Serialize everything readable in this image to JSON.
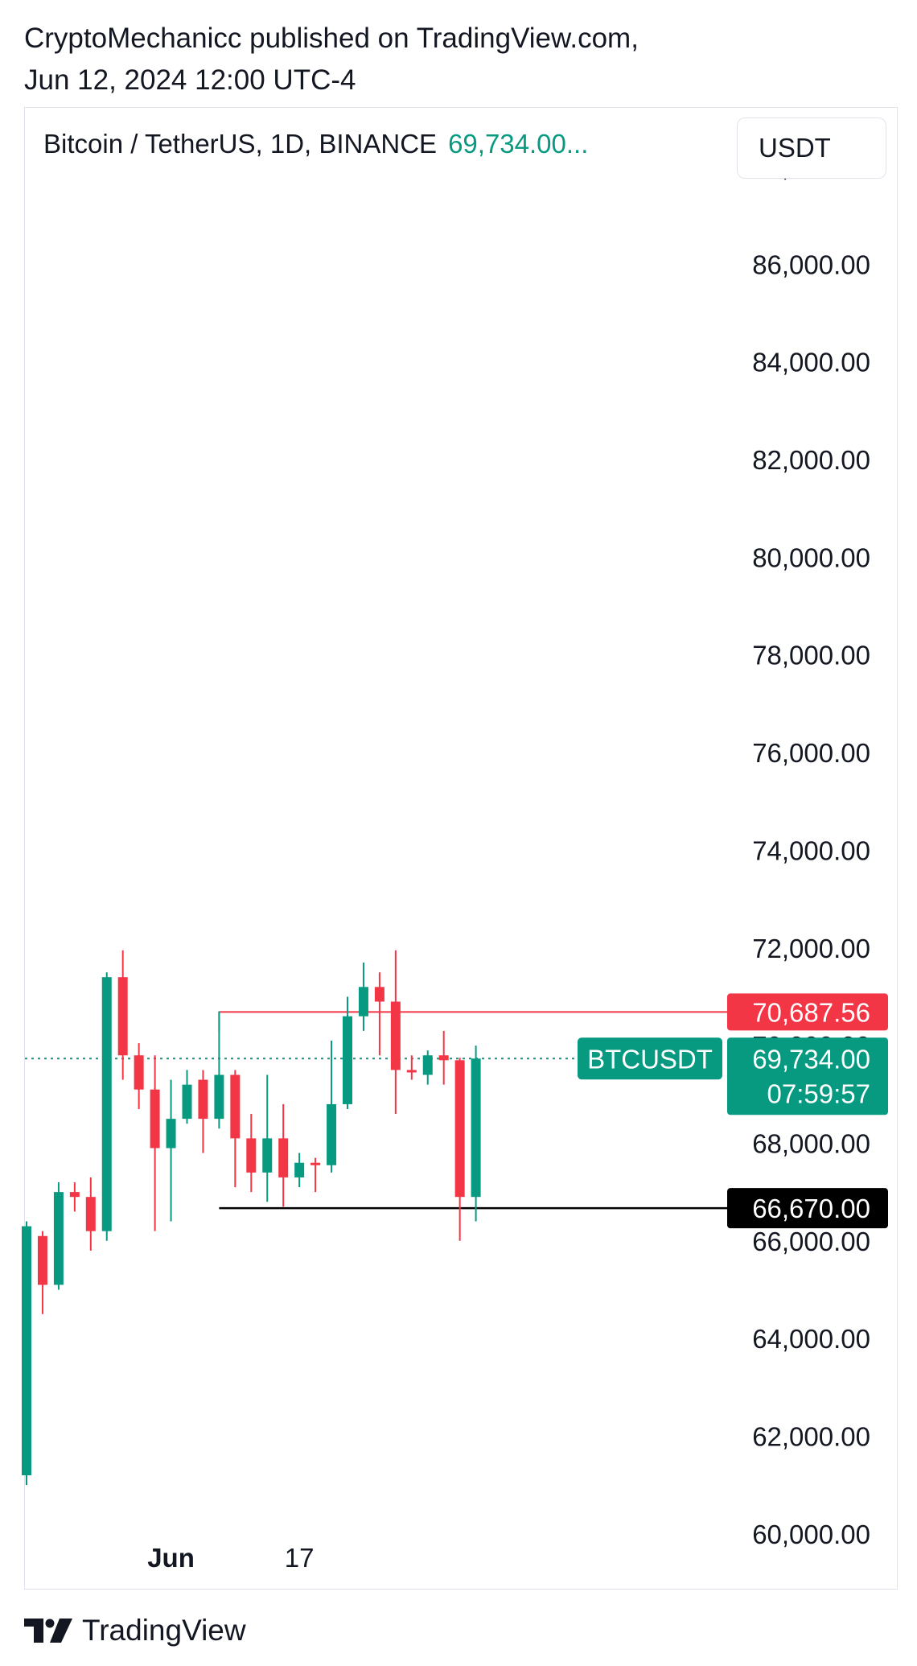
{
  "publisher_line1": "CryptoMechanicc published on TradingView.com,",
  "publisher_line2": "Jun 12, 2024 12:00 UTC-4",
  "symbol_title": "Bitcoin / TetherUS, 1D, BINANCE",
  "title_price": "69,734.00...",
  "currency_button": "USDT",
  "brand": "TradingView",
  "colors": {
    "up": "#089981",
    "down": "#f23645",
    "text": "#131722"
  },
  "chart_data": {
    "type": "candlestick",
    "y_axis": {
      "ticks": [
        60000,
        62000,
        64000,
        66000,
        68000,
        70000,
        72000,
        74000,
        76000,
        78000,
        80000,
        82000,
        84000,
        86000,
        88000
      ],
      "tick_labels": [
        "60,000.00",
        "62,000.00",
        "64,000.00",
        "66,000.00",
        "68,000.00",
        "70,000.00",
        "72,000.00",
        "74,000.00",
        "76,000.00",
        "78,000.00",
        "80,000.00",
        "82,000.00",
        "84,000.00",
        "86,000.00",
        "88,000.00"
      ],
      "visible_range": [
        58860,
        89220
      ]
    },
    "x_axis": {
      "tick_labels": [
        {
          "label": "Jun",
          "index": 9,
          "bold": true
        },
        {
          "label": "17",
          "index": 17,
          "bold": false
        }
      ]
    },
    "candles": [
      {
        "o": 61200,
        "h": 66400,
        "l": 61000,
        "c": 66300
      },
      {
        "o": 66100,
        "h": 66200,
        "l": 64500,
        "c": 65100
      },
      {
        "o": 65100,
        "h": 67200,
        "l": 65000,
        "c": 67000
      },
      {
        "o": 67000,
        "h": 67200,
        "l": 66600,
        "c": 66900
      },
      {
        "o": 66900,
        "h": 67300,
        "l": 65800,
        "c": 66200
      },
      {
        "o": 66200,
        "h": 71500,
        "l": 66000,
        "c": 71400
      },
      {
        "o": 71400,
        "h": 71950,
        "l": 69300,
        "c": 69800
      },
      {
        "o": 69800,
        "h": 70050,
        "l": 68700,
        "c": 69100
      },
      {
        "o": 69100,
        "h": 69800,
        "l": 66200,
        "c": 67900
      },
      {
        "o": 67900,
        "h": 69300,
        "l": 66400,
        "c": 68500
      },
      {
        "o": 68500,
        "h": 69500,
        "l": 68400,
        "c": 69200
      },
      {
        "o": 69300,
        "h": 69500,
        "l": 67800,
        "c": 68500
      },
      {
        "o": 68500,
        "h": 70700,
        "l": 68300,
        "c": 69400
      },
      {
        "o": 69400,
        "h": 69500,
        "l": 67100,
        "c": 68100
      },
      {
        "o": 68100,
        "h": 68600,
        "l": 67000,
        "c": 67400
      },
      {
        "o": 67400,
        "h": 69400,
        "l": 66800,
        "c": 68100
      },
      {
        "o": 68100,
        "h": 68800,
        "l": 66700,
        "c": 67300
      },
      {
        "o": 67300,
        "h": 67800,
        "l": 67100,
        "c": 67600
      },
      {
        "o": 67600,
        "h": 67700,
        "l": 67000,
        "c": 67550
      },
      {
        "o": 67550,
        "h": 70100,
        "l": 67400,
        "c": 68800
      },
      {
        "o": 68800,
        "h": 71000,
        "l": 68700,
        "c": 70600
      },
      {
        "o": 70600,
        "h": 71700,
        "l": 70300,
        "c": 71200
      },
      {
        "o": 71200,
        "h": 71500,
        "l": 69800,
        "c": 70900
      },
      {
        "o": 70900,
        "h": 71950,
        "l": 68600,
        "c": 69500
      },
      {
        "o": 69500,
        "h": 69800,
        "l": 69300,
        "c": 69450
      },
      {
        "o": 69400,
        "h": 69900,
        "l": 69200,
        "c": 69800
      },
      {
        "o": 69800,
        "h": 70300,
        "l": 69200,
        "c": 69700
      },
      {
        "o": 69700,
        "h": 69750,
        "l": 66000,
        "c": 66900
      },
      {
        "o": 66900,
        "h": 70000,
        "l": 66400,
        "c": 69734
      }
    ],
    "last_price_label": "BTCUSDT",
    "last_price": {
      "value": 69734.0,
      "label": "69,734.00",
      "countdown": "07:59:57"
    },
    "resistance": {
      "value": 70687.56,
      "label": "70,687.56",
      "from_index": 12
    },
    "support": {
      "value": 66670.0,
      "label": "66,670.00",
      "from_index": 12
    }
  }
}
